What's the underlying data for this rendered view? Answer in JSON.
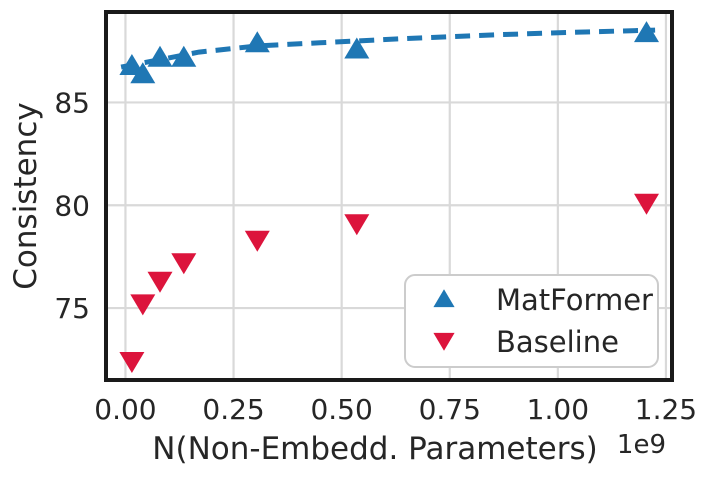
{
  "chart_data": {
    "type": "scatter",
    "title": "",
    "xlabel": "N(Non-Embedd. Parameters)",
    "xlabel_offset": "1e9",
    "ylabel": "Consistency",
    "xlim": [
      -0.045,
      1.264
    ],
    "ylim": [
      71.5,
      89.4
    ],
    "x_ticks": [
      0.0,
      0.25,
      0.5,
      0.75,
      1.0,
      1.25
    ],
    "x_tick_labels": [
      "0.00",
      "0.25",
      "0.50",
      "0.75",
      "1.00",
      "1.25"
    ],
    "y_ticks": [
      75,
      80,
      85
    ],
    "y_tick_labels": [
      "75",
      "80",
      "85"
    ],
    "grid": true,
    "legend_position": "lower right",
    "x": [
      0.015,
      0.04,
      0.08,
      0.135,
      0.305,
      0.535,
      1.205
    ],
    "series": [
      {
        "name": "MatFormer",
        "marker": "triangle-up",
        "color": "#1f77b4",
        "values": [
          86.8,
          86.4,
          87.2,
          87.2,
          87.9,
          87.6,
          88.4
        ]
      },
      {
        "name": "Baseline",
        "marker": "triangle-down",
        "color": "#dc143c",
        "values": [
          72.4,
          75.2,
          76.3,
          77.2,
          78.3,
          79.1,
          80.1
        ]
      }
    ],
    "trend": {
      "series": "MatFormer",
      "style": "dashed",
      "color": "#1f77b4",
      "x": [
        -0.01,
        0.17,
        0.305,
        0.45,
        0.64,
        0.87,
        1.05,
        1.225
      ],
      "y": [
        86.72,
        87.45,
        87.75,
        87.9,
        88.1,
        88.3,
        88.42,
        88.52
      ]
    },
    "colors": {
      "frame": "#1a1a1a",
      "grid": "#d9d9d9",
      "text": "#262626",
      "legend_border": "#cccccc",
      "background": "#ffffff"
    }
  }
}
